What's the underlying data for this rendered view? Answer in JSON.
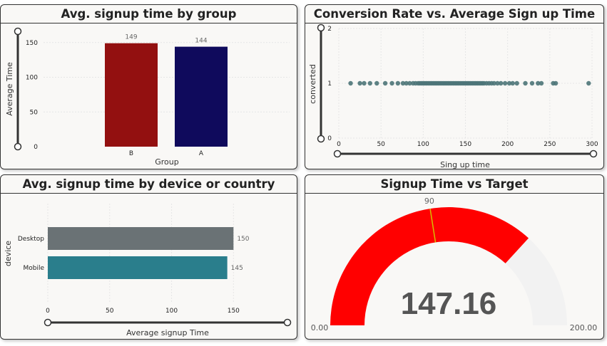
{
  "panels": {
    "p1": {
      "title": "Avg. signup time by group"
    },
    "p2": {
      "title": "Conversion Rate vs. Average Sign up Time"
    },
    "p3": {
      "title": "Avg. signup time by device or country"
    },
    "p4": {
      "title": "Signup Time vs Target"
    }
  },
  "chart_data": [
    {
      "type": "bar",
      "title": "Avg. signup time by group",
      "xlabel": "Group",
      "ylabel": "Average Time",
      "categories": [
        "B",
        "A"
      ],
      "values": [
        149,
        144
      ],
      "data_labels": [
        "149",
        "144"
      ],
      "colors": [
        "#931010",
        "#0f0a5c"
      ],
      "ylim": [
        0,
        160
      ],
      "yticks": [
        0,
        50,
        100,
        150
      ]
    },
    {
      "type": "scatter",
      "title": "Conversion Rate vs. Average Sign up Time",
      "xlabel": "Sing up time",
      "ylabel": "converted",
      "color": "#4d7478",
      "xlim": [
        0,
        300
      ],
      "ylim": [
        0,
        2
      ],
      "xticks": [
        0,
        50,
        100,
        150,
        200,
        250,
        300
      ],
      "yticks": [
        0,
        1,
        2
      ],
      "x": [
        14,
        25,
        30,
        37,
        45,
        55,
        63,
        70,
        76,
        80,
        84,
        88,
        91,
        94,
        96,
        98,
        100,
        102,
        104,
        106,
        108,
        110,
        112,
        114,
        116,
        118,
        120,
        122,
        124,
        126,
        128,
        130,
        132,
        134,
        136,
        138,
        140,
        142,
        144,
        146,
        148,
        150,
        152,
        154,
        156,
        158,
        160,
        162,
        164,
        166,
        168,
        170,
        172,
        175,
        178,
        181,
        184,
        188,
        192,
        197,
        202,
        206,
        211,
        221,
        229,
        236,
        240,
        254,
        257,
        296
      ],
      "y": [
        1,
        1,
        1,
        1,
        1,
        1,
        1,
        1,
        1,
        1,
        1,
        1,
        1,
        1,
        1,
        1,
        1,
        1,
        1,
        1,
        1,
        1,
        1,
        1,
        1,
        1,
        1,
        1,
        1,
        1,
        1,
        1,
        1,
        1,
        1,
        1,
        1,
        1,
        1,
        1,
        1,
        1,
        1,
        1,
        1,
        1,
        1,
        1,
        1,
        1,
        1,
        1,
        1,
        1,
        1,
        1,
        1,
        1,
        1,
        1,
        1,
        1,
        1,
        1,
        1,
        1,
        1,
        1,
        1,
        1
      ]
    },
    {
      "type": "bar",
      "orientation": "horizontal",
      "title": "Avg. signup time by device or country",
      "xlabel": "Average signup Time",
      "ylabel": "device",
      "categories": [
        "Desktop",
        "Mobile"
      ],
      "values": [
        150,
        145
      ],
      "data_labels": [
        "150",
        "145"
      ],
      "colors": [
        "#6a7275",
        "#2a7e8c"
      ],
      "xlim": [
        0,
        155
      ],
      "xticks": [
        0,
        50,
        100,
        150
      ]
    },
    {
      "type": "gauge",
      "title": "Signup Time vs Target",
      "value": 147.16,
      "value_label": "147.16",
      "min": 0,
      "max": 200,
      "min_label": "0.00",
      "max_label": "200.00",
      "target": 90,
      "target_label": "90",
      "fill_color": "#ff0000",
      "track_color": "#f2f2f2",
      "target_color": "#d4c000"
    }
  ]
}
